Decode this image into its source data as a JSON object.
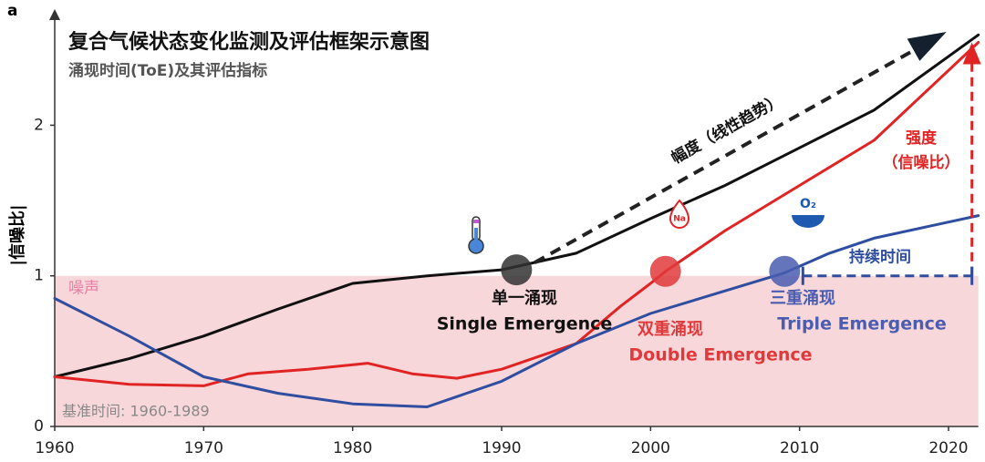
{
  "chart_data": {
    "type": "line",
    "panel_label": "a",
    "title": "复合气候状态变化监测及评估框架示意图",
    "subtitle": "涌现时间(ToE)及其评估指标",
    "y_label": "|信噪比|",
    "xlim": [
      1960,
      2022
    ],
    "xticks": [
      1960,
      1970,
      1980,
      1990,
      2000,
      2010,
      2020
    ],
    "ylim": [
      0,
      2.65
    ],
    "yticks": [
      0,
      1,
      2
    ],
    "noise_level": 1,
    "noise_label": "噪声",
    "baseline_label": "基准时间: 1960-1989",
    "trend_label": "幅度（线性趋势）",
    "intensity_label": [
      "强度",
      "（信噪比）"
    ],
    "duration_label": "持续时间",
    "icons": {
      "sodium": "Na",
      "oxygen": "O₂"
    },
    "series": [
      {
        "name": "幅度",
        "color": "#111111",
        "x": [
          1960,
          1965,
          1970,
          1975,
          1980,
          1985,
          1990,
          1995,
          2000,
          2005,
          2010,
          2015,
          2022
        ],
        "values": [
          0.33,
          0.45,
          0.6,
          0.78,
          0.95,
          1.0,
          1.04,
          1.15,
          1.38,
          1.6,
          1.85,
          2.1,
          2.6
        ]
      },
      {
        "name": "强度",
        "color": "#e02424",
        "x": [
          1960,
          1965,
          1970,
          1973,
          1977,
          1981,
          1984,
          1987,
          1990,
          1995,
          1998,
          2000,
          2001,
          2005,
          2010,
          2015,
          2022
        ],
        "values": [
          0.33,
          0.28,
          0.27,
          0.35,
          0.38,
          0.42,
          0.35,
          0.32,
          0.38,
          0.55,
          0.8,
          0.95,
          1.03,
          1.3,
          1.6,
          1.9,
          2.55
        ]
      },
      {
        "name": "持续时间",
        "color": "#2f4ea0",
        "x": [
          1960,
          1965,
          1970,
          1975,
          1980,
          1985,
          1990,
          1995,
          2000,
          2005,
          2009,
          2012,
          2015,
          2022
        ],
        "values": [
          0.85,
          0.6,
          0.33,
          0.22,
          0.15,
          0.13,
          0.3,
          0.55,
          0.75,
          0.9,
          1.02,
          1.15,
          1.25,
          1.4
        ]
      }
    ],
    "emergence": [
      {
        "label": "单一涌现",
        "label_en": "Single Emergence",
        "x": 1991,
        "y": 1.04,
        "color": "#333333"
      },
      {
        "label": "双重涌现",
        "label_en": "Double Emergence",
        "x": 2001,
        "y": 1.03,
        "color": "#e0393b"
      },
      {
        "label": "三重涌现",
        "label_en": "Triple Emergence",
        "x": 2009,
        "y": 1.03,
        "color": "#4a5db0"
      }
    ]
  }
}
